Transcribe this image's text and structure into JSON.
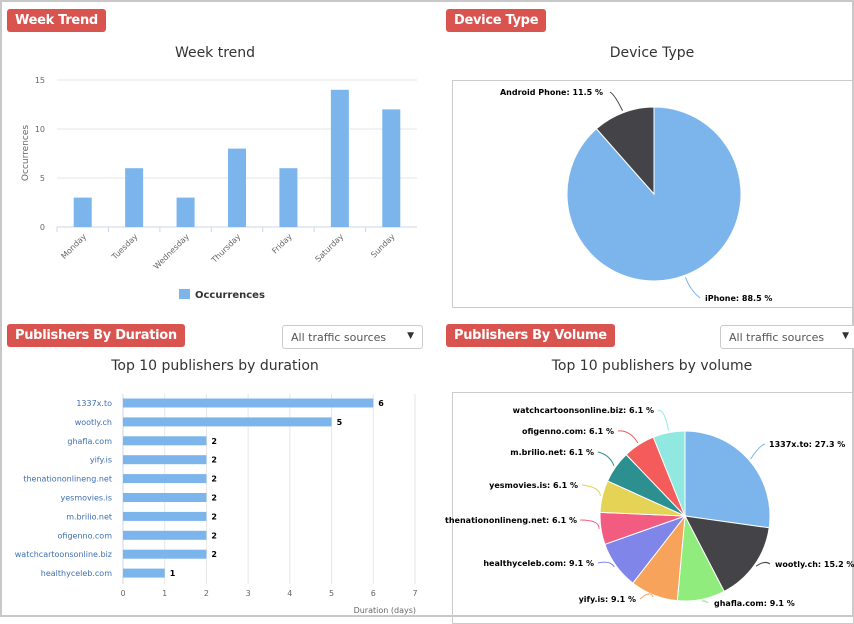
{
  "panels": {
    "week": {
      "badge": "Week Trend"
    },
    "device": {
      "badge": "Device Type"
    },
    "duration": {
      "badge": "Publishers By Duration",
      "filter": "All traffic sources"
    },
    "volume": {
      "badge": "Publishers By Volume",
      "filter": "All traffic sources"
    }
  },
  "chart_data": [
    {
      "type": "bar",
      "title": "Week trend",
      "ylabel": "Occurrences",
      "xlabel": "",
      "ylim": [
        0,
        15
      ],
      "yticks": [
        0,
        5,
        10,
        15
      ],
      "categories": [
        "Monday",
        "Tuesday",
        "Wednesday",
        "Thursday",
        "Friday",
        "Saturday",
        "Sunday"
      ],
      "values": [
        3,
        6,
        3,
        8,
        6,
        14,
        12
      ],
      "legend": "Occurrences",
      "color": "#7cb5ec"
    },
    {
      "type": "pie",
      "title": "Device Type",
      "labels": [
        "iPhone",
        "Android Phone"
      ],
      "values": [
        88.5,
        11.5
      ],
      "display": [
        "iPhone: 88.5 %",
        "Android Phone: 11.5 %"
      ],
      "colors": [
        "#7cb5ec",
        "#434348"
      ]
    },
    {
      "type": "bar",
      "orientation": "horizontal",
      "title": "Top 10 publishers by duration",
      "xlabel": "Duration (days)",
      "xlim": [
        0,
        7
      ],
      "xticks": [
        0,
        1,
        2,
        3,
        4,
        5,
        6,
        7
      ],
      "categories": [
        "1337x.to",
        "wootly.ch",
        "ghafla.com",
        "yify.is",
        "thenationonlineng.net",
        "yesmovies.is",
        "m.brilio.net",
        "ofigenno.com",
        "watchcartoonsonline.biz",
        "healthyceleb.com"
      ],
      "values": [
        6,
        5,
        2,
        2,
        2,
        2,
        2,
        2,
        2,
        1
      ],
      "color": "#7cb5ec"
    },
    {
      "type": "pie",
      "title": "Top 10 publishers by volume",
      "labels": [
        "1337x.to",
        "wootly.ch",
        "ghafla.com",
        "yify.is",
        "healthyceleb.com",
        "thenationonlineng.net",
        "yesmovies.is",
        "m.brilio.net",
        "ofigenno.com",
        "watchcartoonsonline.biz"
      ],
      "values": [
        27.3,
        15.2,
        9.1,
        9.1,
        9.1,
        6.1,
        6.1,
        6.1,
        6.1,
        6.1
      ],
      "display": [
        "1337x.to: 27.3 %",
        "wootly.ch: 15.2 %",
        "ghafla.com: 9.1 %",
        "yify.is: 9.1 %",
        "healthyceleb.com: 9.1 %",
        "thenationonlineng.net: 6.1 %",
        "yesmovies.is: 6.1 %",
        "m.brilio.net: 6.1 %",
        "ofigenno.com: 6.1 %",
        "watchcartoonsonline.biz: 6.1 %"
      ],
      "colors": [
        "#7cb5ec",
        "#434348",
        "#90ed7d",
        "#f7a35c",
        "#8085e9",
        "#f15c80",
        "#e4d354",
        "#2b908f",
        "#f45b5b",
        "#91e8e1"
      ]
    }
  ]
}
